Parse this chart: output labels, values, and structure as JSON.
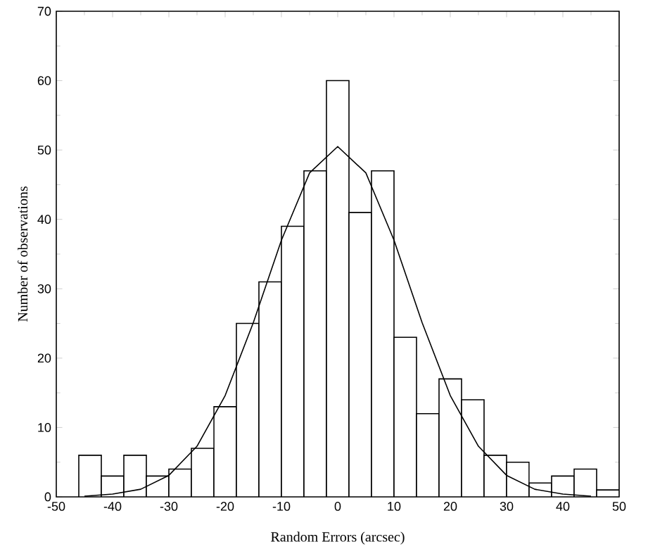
{
  "chart_data": {
    "type": "histogram",
    "xlabel": "Random Errors (arcsec)",
    "ylabel": "Number of observations",
    "bins": [
      -46,
      -42,
      -38,
      -34,
      -30,
      -26,
      -22,
      -18,
      -14,
      -10,
      -6,
      -2,
      2,
      6,
      10,
      14,
      18,
      22,
      26,
      30,
      34,
      38,
      42,
      46,
      50
    ],
    "values": [
      6,
      3,
      6,
      3,
      4,
      7,
      13,
      25,
      31,
      39,
      47,
      60,
      41,
      47,
      23,
      12,
      17,
      14,
      6,
      5,
      2,
      3,
      4,
      1
    ],
    "color": "#ffffff",
    "series": [
      {
        "type": "line",
        "color": "#000000",
        "x": [
          -45,
          -40,
          -35,
          -30,
          -25,
          -20,
          -15,
          -10,
          -5,
          0,
          5,
          10,
          15,
          20,
          25,
          30,
          35,
          40,
          45
        ],
        "values": [
          0.1,
          0.4,
          1.1,
          3.1,
          7.3,
          14.6,
          25.1,
          37.0,
          46.7,
          50.5,
          46.7,
          37.0,
          25.1,
          14.6,
          7.3,
          3.1,
          1.1,
          0.4,
          0.1
        ]
      }
    ],
    "xlim": [
      -50,
      50
    ],
    "xticks": [
      -50,
      -40,
      -30,
      -20,
      -10,
      0,
      10,
      20,
      30,
      40,
      50
    ],
    "ylim": [
      0,
      70
    ],
    "yticks": [
      0,
      10,
      20,
      30,
      40,
      50,
      60,
      70
    ]
  }
}
